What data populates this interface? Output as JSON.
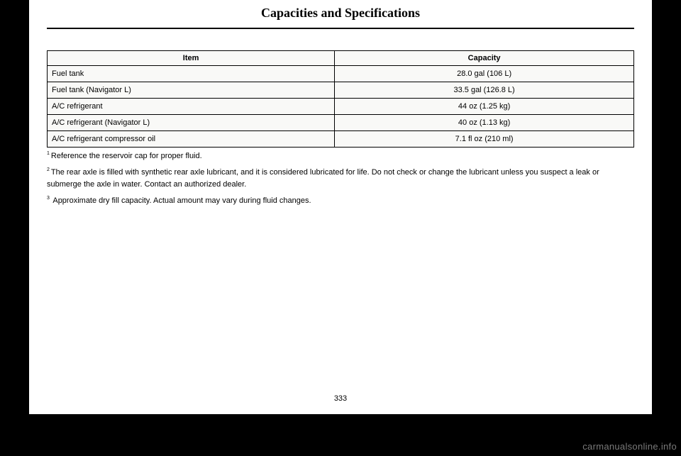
{
  "header": {
    "title": "Capacities and Specifications"
  },
  "table": {
    "headers": {
      "item": "Item",
      "capacity": "Capacity"
    },
    "rows": [
      {
        "item": "Fuel tank",
        "capacity": "28.0 gal (106 L)"
      },
      {
        "item": "Fuel tank (Navigator L)",
        "capacity": "33.5 gal (126.8 L)"
      },
      {
        "item": "A/C refrigerant",
        "capacity": "44 oz (1.25 kg)"
      },
      {
        "item": "A/C refrigerant (Navigator L)",
        "capacity": "40 oz (1.13 kg)"
      },
      {
        "item": "A/C refrigerant compressor oil",
        "capacity": "7.1 fl oz (210 ml)"
      }
    ]
  },
  "footnotes": {
    "n1": {
      "num": "1",
      "text": "Reference the reservoir cap for proper fluid."
    },
    "n2": {
      "num": "2",
      "text": "The rear axle is filled with synthetic rear axle lubricant, and it is considered lubricated for life. Do not check or change the lubricant unless you suspect a leak or submerge the axle in water. Contact an authorized dealer."
    },
    "n3": {
      "num": "3",
      "text": " Approximate dry fill capacity. Actual amount may vary during fluid changes."
    }
  },
  "page_number": "333",
  "watermark": "carmanualsonline.info"
}
